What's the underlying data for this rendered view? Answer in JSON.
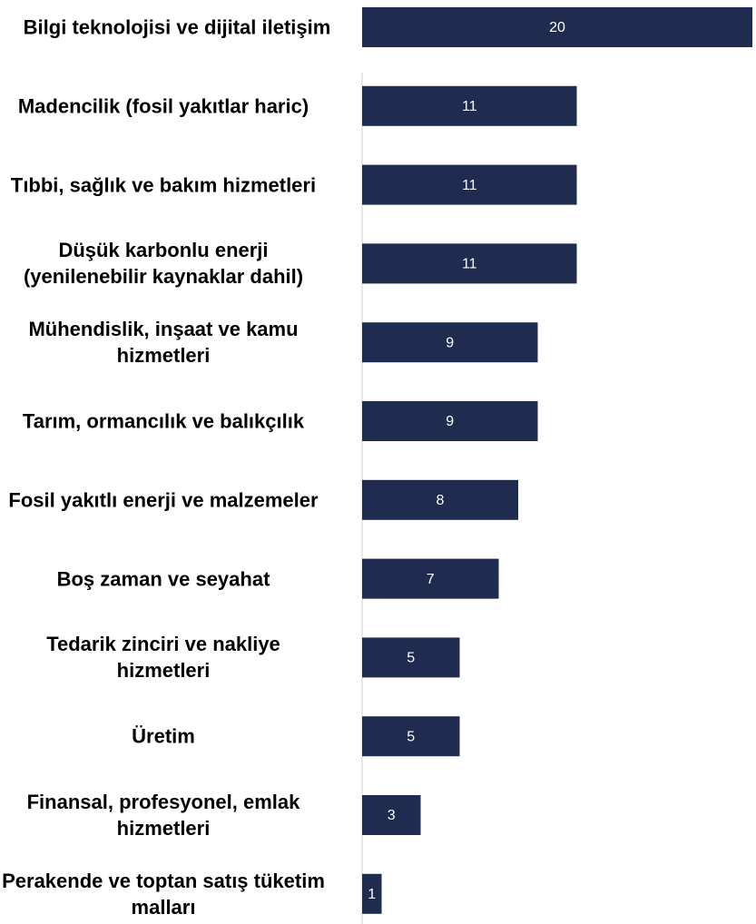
{
  "chart_data": {
    "type": "bar",
    "orientation": "horizontal",
    "categories": [
      "Bilgi teknolojisi ve dijital iletişim",
      "Madencilik (fosil yakıtlar haric)",
      "Tıbbi, sağlık ve bakım hizmetleri",
      "Düşük karbonlu enerji (yenilenebilir kaynaklar dahil)",
      "Mühendislik, inşaat ve kamu hizmetleri",
      "Tarım, ormancılık ve balıkçılık",
      "Fosil yakıtlı enerji ve malzemeler",
      "Boş zaman ve seyahat",
      "Tedarik zinciri ve nakliye hizmetleri",
      "Üretim",
      "Finansal, profesyonel, emlak hizmetleri",
      "Perakende ve toptan satış tüketim malları"
    ],
    "values": [
      20,
      11,
      11,
      11,
      9,
      9,
      8,
      7,
      5,
      5,
      3,
      1
    ],
    "color": "#1f2c4f"
  }
}
